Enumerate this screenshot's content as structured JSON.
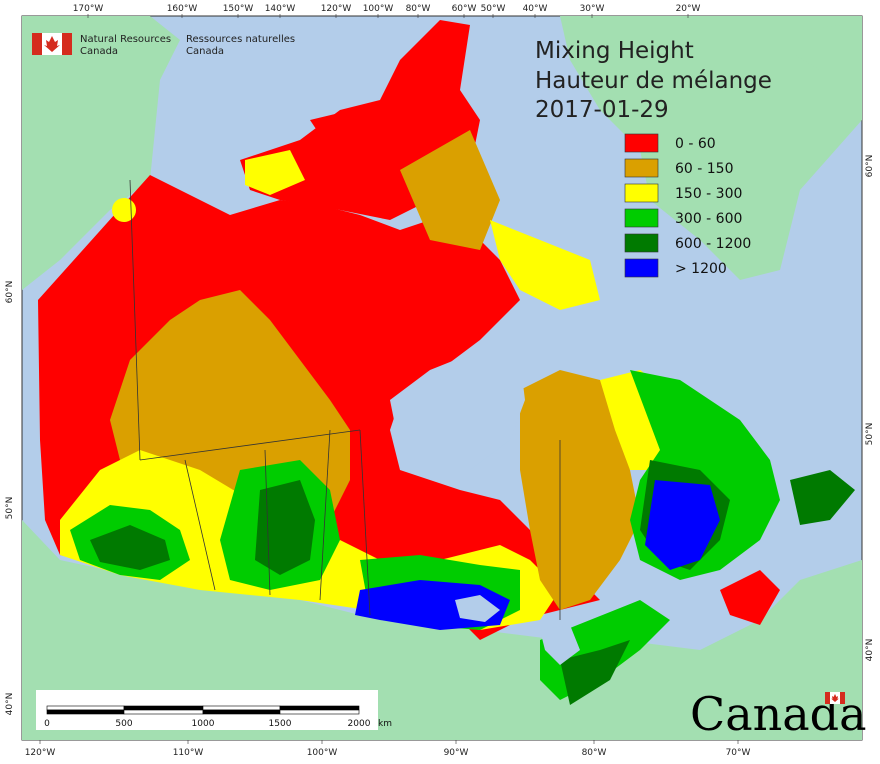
{
  "ministry": {
    "en_line1": "Natural Resources",
    "en_line2": "Canada",
    "fr_line1": "Ressources naturelles",
    "fr_line2": "Canada"
  },
  "title": {
    "line1": "Mixing Height",
    "line2": "Hauteur de mélange",
    "date": "2017-01-29"
  },
  "legend": [
    {
      "label": "0 - 60",
      "color": "#ff0000"
    },
    {
      "label": "60 - 150",
      "color": "#daa000"
    },
    {
      "label": "150 - 300",
      "color": "#ffff00"
    },
    {
      "label": "300 - 600",
      "color": "#00cc00"
    },
    {
      "label": "600 - 1200",
      "color": "#007a00"
    },
    {
      "label": "> 1200",
      "color": "#0000ff"
    }
  ],
  "top_ticks": [
    "170°W",
    "160°W",
    "150°W",
    "140°W",
    "120°W",
    "100°W",
    "80°W",
    "60°W",
    "50°W",
    "40°W",
    "30°W",
    "20°W"
  ],
  "bottom_ticks": [
    "120°W",
    "110°W",
    "100°W",
    "90°W",
    "80°W",
    "70°W"
  ],
  "left_ticks": [
    "60°N",
    "50°N",
    "40°N"
  ],
  "right_ticks": [
    "60°N",
    "50°N",
    "40°N"
  ],
  "scale_bar": {
    "labels": [
      "0",
      "500",
      "1000",
      "1500",
      "2000"
    ],
    "unit": "km"
  },
  "wordmark": "Canada",
  "colors": {
    "ocean": "#b3cdea",
    "foreign_land": "#a3dfb1",
    "border": "#333333"
  }
}
